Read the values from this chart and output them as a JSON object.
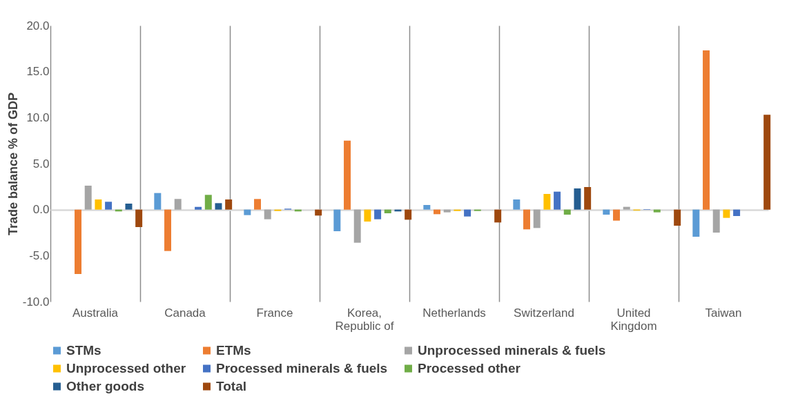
{
  "chart_data": {
    "type": "bar",
    "ylabel": "Trade balance % of GDP",
    "categories": [
      "Australia",
      "Canada",
      "France",
      "Korea, Republic of",
      "Netherlands",
      "Switzerland",
      "United Kingdom",
      "Taiwan"
    ],
    "series": [
      {
        "name": "STMs",
        "color": "#5b9bd5",
        "values": [
          0,
          1.8,
          -0.6,
          -2.35,
          0.5,
          1.1,
          -0.55,
          -2.95
        ]
      },
      {
        "name": "ETMs",
        "color": "#ed7d31",
        "values": [
          -7.0,
          -4.5,
          1.15,
          7.5,
          -0.5,
          -2.15,
          -1.2,
          17.3
        ]
      },
      {
        "name": "Unprocessed minerals & fuels",
        "color": "#a5a5a5",
        "values": [
          2.6,
          1.15,
          -1.05,
          -3.6,
          -0.3,
          -2.0,
          0.3,
          -2.5
        ]
      },
      {
        "name": "Unprocessed other",
        "color": "#ffc000",
        "values": [
          1.1,
          0,
          -0.15,
          -1.3,
          -0.15,
          1.7,
          -0.1,
          -0.9
        ]
      },
      {
        "name": "Processed minerals & fuels",
        "color": "#4472c4",
        "values": [
          0.85,
          0.3,
          0.1,
          -1.05,
          -0.75,
          1.95,
          0.05,
          -0.7
        ]
      },
      {
        "name": "Processed other",
        "color": "#70ad47",
        "values": [
          -0.2,
          1.6,
          -0.2,
          -0.4,
          -0.15,
          -0.55,
          -0.3,
          null
        ]
      },
      {
        "name": "Other goods",
        "color": "#255e91",
        "values": [
          0.65,
          0.7,
          0,
          -0.2,
          null,
          2.3,
          0,
          0
        ]
      },
      {
        "name": "Total",
        "color": "#9e480e",
        "values": [
          -1.9,
          1.1,
          -0.65,
          -1.1,
          -1.4,
          2.45,
          -1.75,
          10.3
        ]
      }
    ],
    "ylim": [
      -10,
      20
    ],
    "yticks": [
      {
        "value": -10,
        "label": "-10.0"
      },
      {
        "value": -5,
        "label": "-5.0"
      },
      {
        "value": 0,
        "label": "0.0"
      },
      {
        "value": 5,
        "label": "5.0"
      },
      {
        "value": 10,
        "label": "10.0"
      },
      {
        "value": 15,
        "label": "15.0"
      },
      {
        "value": 20,
        "label": "20.0"
      }
    ],
    "grid": "x",
    "legend": "bottom"
  }
}
